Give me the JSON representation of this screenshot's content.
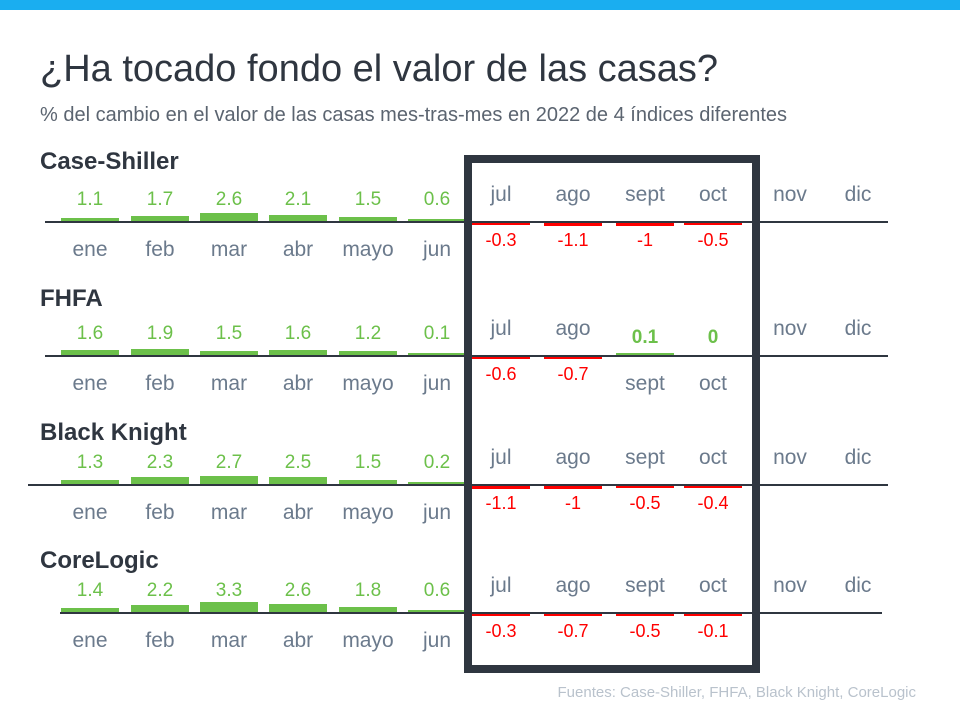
{
  "title": "¿Ha tocado fondo el valor de las casas?",
  "subtitle": "% del cambio en el valor de las casas mes-tras-mes en 2022 de 4 índices diferentes",
  "source": "Fuentes:  Case-Shiller, FHFA, Black Knight, CoreLogic",
  "colors": {
    "positive": "#6cc04a",
    "negative": "#ff0000",
    "axis": "#2f3640",
    "month": "#6b7a8c",
    "highlight_box": "#2f3640"
  },
  "chart_data": [
    {
      "type": "bar",
      "title": "Case-Shiller",
      "categories": [
        "ene",
        "feb",
        "mar",
        "abr",
        "mayo",
        "jun",
        "jul",
        "ago",
        "sept",
        "oct",
        "nov",
        "dic"
      ],
      "values": [
        1.1,
        1.7,
        2.6,
        2.1,
        1.5,
        0.6,
        -0.3,
        -1.1,
        -1,
        -0.5,
        null,
        null
      ]
    },
    {
      "type": "bar",
      "title": "FHFA",
      "categories": [
        "ene",
        "feb",
        "mar",
        "abr",
        "mayo",
        "jun",
        "jul",
        "ago",
        "sept",
        "oct",
        "nov",
        "dic"
      ],
      "values": [
        1.6,
        1.9,
        1.5,
        1.6,
        1.2,
        0.1,
        -0.6,
        -0.7,
        0.1,
        0,
        null,
        null
      ]
    },
    {
      "type": "bar",
      "title": "Black Knight",
      "categories": [
        "ene",
        "feb",
        "mar",
        "abr",
        "mayo",
        "jun",
        "jul",
        "ago",
        "sept",
        "oct",
        "nov",
        "dic"
      ],
      "values": [
        1.3,
        2.3,
        2.7,
        2.5,
        1.5,
        0.2,
        -1.1,
        -1,
        -0.5,
        -0.4,
        null,
        null
      ]
    },
    {
      "type": "bar",
      "title": "CoreLogic",
      "categories": [
        "ene",
        "feb",
        "mar",
        "abr",
        "mayo",
        "jun",
        "jul",
        "ago",
        "sept",
        "oct",
        "nov",
        "dic"
      ],
      "values": [
        1.4,
        2.2,
        3.3,
        2.6,
        1.8,
        0.6,
        -0.3,
        -0.7,
        -0.5,
        -0.1,
        null,
        null
      ]
    }
  ]
}
